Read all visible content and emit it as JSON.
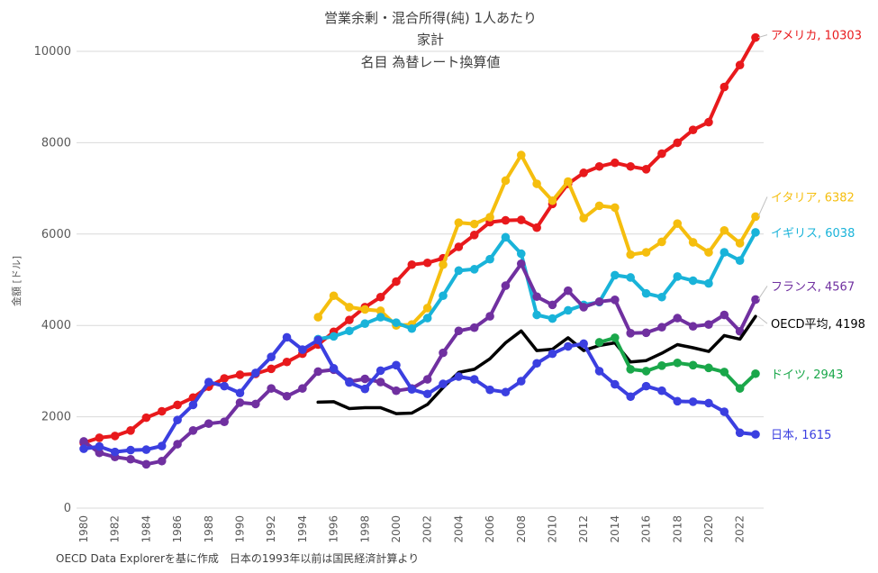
{
  "chart_data": {
    "type": "line",
    "title_lines": [
      "営業余剰・混合所得(純) 1人あたり",
      "家計",
      "名目 為替レート換算値"
    ],
    "ylabel": "金額 [ドル]",
    "xlabel": "",
    "ylim": [
      0,
      10500
    ],
    "yticks": [
      0,
      2000,
      4000,
      6000,
      8000,
      10000
    ],
    "xlim": [
      1980,
      2023
    ],
    "xticks": [
      1980,
      1982,
      1984,
      1986,
      1988,
      1990,
      1992,
      1994,
      1996,
      1998,
      2000,
      2002,
      2004,
      2006,
      2008,
      2010,
      2012,
      2014,
      2016,
      2018,
      2020,
      2022
    ],
    "grid": "horizontal",
    "source_note": "OECD Data Explorerを基に作成　日本の1993年以前は国民経済計算より",
    "series": [
      {
        "name": "アメリカ",
        "end_label": "アメリカ, 10303",
        "color": "#e8191c",
        "markers": true,
        "x_start": 1980,
        "values": [
          1430,
          1540,
          1580,
          1700,
          1980,
          2120,
          2260,
          2420,
          2660,
          2840,
          2920,
          2940,
          3050,
          3200,
          3380,
          3580,
          3860,
          4120,
          4400,
          4620,
          4960,
          5330,
          5370,
          5470,
          5720,
          5980,
          6260,
          6300,
          6310,
          6140,
          6660,
          7100,
          7340,
          7480,
          7560,
          7480,
          7420,
          7760,
          8000,
          8280,
          8450,
          9220,
          9700,
          10303
        ]
      },
      {
        "name": "イタリア",
        "end_label": "イタリア, 6382",
        "color": "#f5be0e",
        "markers": true,
        "x_start": 1995,
        "values": [
          4180,
          4650,
          4400,
          4350,
          4320,
          4000,
          4020,
          4380,
          5330,
          6250,
          6220,
          6370,
          7170,
          7730,
          7100,
          6730,
          7150,
          6350,
          6620,
          6580,
          5550,
          5600,
          5830,
          6230,
          5820,
          5600,
          6080,
          5800,
          6382
        ]
      },
      {
        "name": "イギリス",
        "end_label": "イギリス, 6038",
        "color": "#19b3d9",
        "markers": true,
        "x_start": 1995,
        "values": [
          3700,
          3760,
          3880,
          4040,
          4180,
          4060,
          3930,
          4160,
          4650,
          5200,
          5230,
          5450,
          5930,
          5570,
          4230,
          4150,
          4330,
          4450,
          4510,
          5100,
          5050,
          4700,
          4620,
          5070,
          4980,
          4920,
          5600,
          5420,
          6038
        ]
      },
      {
        "name": "フランス",
        "end_label": "フランス, 4567",
        "color": "#7030a0",
        "markers": true,
        "x_start": 1980,
        "values": [
          1460,
          1210,
          1120,
          1070,
          960,
          1030,
          1400,
          1700,
          1850,
          1890,
          2310,
          2280,
          2620,
          2450,
          2620,
          2990,
          3030,
          2770,
          2830,
          2760,
          2570,
          2620,
          2820,
          3400,
          3880,
          3950,
          4200,
          4870,
          5350,
          4630,
          4450,
          4760,
          4400,
          4520,
          4560,
          3830,
          3840,
          3960,
          4160,
          3980,
          4020,
          4230,
          3870,
          4567
        ]
      },
      {
        "name": "OECD平均",
        "end_label": "OECD平均, 4198",
        "color": "#000000",
        "markers": false,
        "x_start": 1995,
        "values": [
          2320,
          2330,
          2180,
          2200,
          2200,
          2070,
          2080,
          2270,
          2640,
          2970,
          3040,
          3270,
          3620,
          3880,
          3450,
          3480,
          3730,
          3450,
          3560,
          3620,
          3200,
          3230,
          3390,
          3580,
          3510,
          3430,
          3780,
          3700,
          4198
        ]
      },
      {
        "name": "ドイツ",
        "end_label": "ドイツ, 2943",
        "color": "#1aa74a",
        "markers": true,
        "x_start": 2013,
        "values": [
          3630,
          3730,
          3040,
          3000,
          3120,
          3180,
          3130,
          3070,
          2980,
          2620,
          2943
        ]
      },
      {
        "name": "日本",
        "end_label": "日本, 1615",
        "color": "#3b3fe0",
        "markers": true,
        "x_start": 1980,
        "values": [
          1300,
          1350,
          1230,
          1270,
          1280,
          1360,
          1930,
          2260,
          2760,
          2670,
          2520,
          2960,
          3310,
          3740,
          3470,
          3680,
          3060,
          2750,
          2610,
          3010,
          3130,
          2600,
          2500,
          2720,
          2880,
          2820,
          2590,
          2540,
          2780,
          3170,
          3380,
          3540,
          3600,
          3000,
          2710,
          2440,
          2670,
          2570,
          2340,
          2330,
          2300,
          2110,
          1650,
          1615
        ]
      }
    ]
  }
}
